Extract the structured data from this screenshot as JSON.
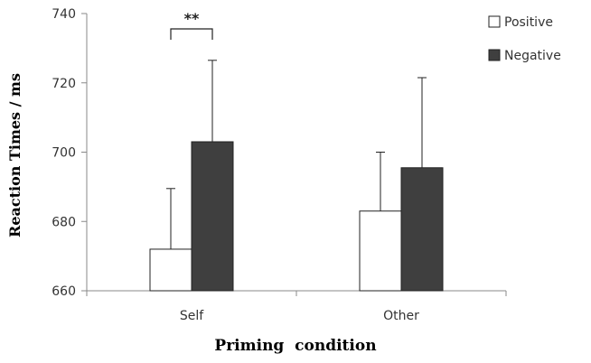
{
  "chart_data": {
    "type": "bar",
    "categories": [
      "Self",
      "Other"
    ],
    "series": [
      {
        "name": "Positive",
        "values": [
          672,
          683
        ],
        "error": [
          17.5,
          17
        ],
        "color": "#ffffff"
      },
      {
        "name": "Negative",
        "values": [
          703,
          695.5
        ],
        "error": [
          23.5,
          26
        ],
        "color": "#3f3f3f"
      }
    ],
    "ylim": [
      660,
      740
    ],
    "yticks": [
      660,
      680,
      700,
      720,
      740
    ],
    "ylabel": "Reaction Times / ms",
    "xlabel": "Priming  condition",
    "legend": "top-right",
    "grid": false,
    "annotation": {
      "text": "**",
      "category": "Self"
    }
  }
}
